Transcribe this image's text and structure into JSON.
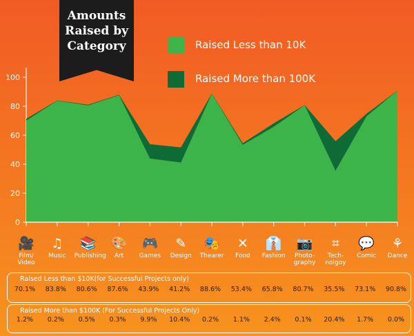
{
  "banner": {
    "title_lines": [
      "Amounts",
      "Raised by",
      "Category"
    ]
  },
  "colors": {
    "less_10k": "#3cb44a",
    "more_100k": "#0f6b35",
    "axis": "#ffffff"
  },
  "chart_data": {
    "type": "area",
    "title": "Amounts Raised by Category",
    "categories": [
      "Film/Video",
      "Music",
      "Publishing",
      "Art",
      "Games",
      "Design",
      "Thearer",
      "Food",
      "Fashion",
      "Photography",
      "Technolgoy",
      "Comic",
      "Dance"
    ],
    "ylim": [
      0,
      100
    ],
    "yticks": [
      0,
      20,
      40,
      60,
      80,
      100
    ],
    "legend_position": "top-right",
    "series": [
      {
        "name": "Raised Less  than 10K",
        "values": [
          70.1,
          83.8,
          80.6,
          87.6,
          43.9,
          41.2,
          88.6,
          53.4,
          65.8,
          80.7,
          35.5,
          73.1,
          90.8
        ]
      },
      {
        "name": "Raised More  than 100K",
        "values": [
          1.2,
          0.2,
          0.5,
          0.3,
          9.9,
          10.4,
          0.2,
          1.1,
          2.4,
          0.1,
          20.4,
          1.7,
          0.0
        ]
      }
    ]
  },
  "category_axis": [
    {
      "icon": "film-camera-icon",
      "glyph": "🎥",
      "lines": [
        "Film/",
        "Video"
      ]
    },
    {
      "icon": "music-note-icon",
      "glyph": "♫",
      "lines": [
        "Music"
      ]
    },
    {
      "icon": "books-icon",
      "glyph": "📚",
      "lines": [
        "Publishing"
      ]
    },
    {
      "icon": "palette-icon",
      "glyph": "🎨",
      "lines": [
        "Art"
      ]
    },
    {
      "icon": "gamepad-icon",
      "glyph": "🎮",
      "lines": [
        "Games"
      ]
    },
    {
      "icon": "pen-icon",
      "glyph": "✎",
      "lines": [
        "Design"
      ]
    },
    {
      "icon": "theater-masks-icon",
      "glyph": "🎭",
      "lines": [
        "Thearer"
      ]
    },
    {
      "icon": "fork-knife-icon",
      "glyph": "✕",
      "lines": [
        "Food"
      ]
    },
    {
      "icon": "jacket-icon",
      "glyph": "👔",
      "lines": [
        "Fashion"
      ]
    },
    {
      "icon": "photo-camera-icon",
      "glyph": "📷",
      "lines": [
        "Photo-",
        "graphy"
      ]
    },
    {
      "icon": "circuit-board-icon",
      "glyph": "⌗",
      "lines": [
        "Tech-",
        "nolgoy"
      ]
    },
    {
      "icon": "speech-bubble-icon",
      "glyph": "💬",
      "lines": [
        "Comic"
      ]
    },
    {
      "icon": "dancer-icon",
      "glyph": "⚘",
      "lines": [
        "Dance"
      ]
    }
  ],
  "tables": [
    {
      "title": "Raised Less than $10K(for Successful Projects only)",
      "values": [
        "70.1%",
        "83.8%",
        "80.6%",
        "87.6%",
        "43.9%",
        "41.2%",
        "88.6%",
        "53.4%",
        "65.8%",
        "80.7%",
        "35.5%",
        "73.1%",
        "90.8%"
      ]
    },
    {
      "title": "Raised More than $100K (For Successful Projects Only)",
      "values": [
        "1.2%",
        "0.2%",
        "0.5%",
        "0.3%",
        "9.9%",
        "10.4%",
        "0.2%",
        "1.1%",
        "2.4%",
        "0.1%",
        "20.4%",
        "1.7%",
        "0.0%"
      ]
    }
  ]
}
